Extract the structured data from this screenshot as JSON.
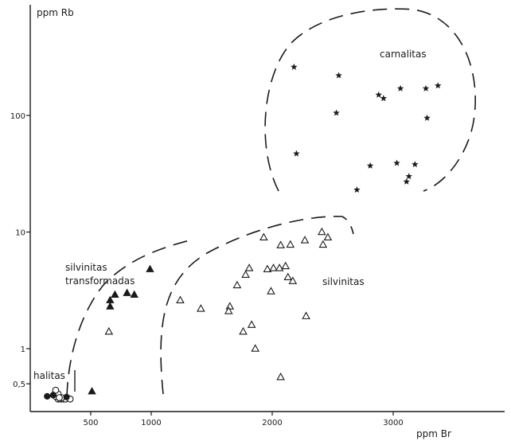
{
  "chart_data": {
    "type": "scatter",
    "title": "",
    "xlabel": "ppm Br",
    "ylabel": "ppm Rb",
    "x_scale": "linear",
    "y_scale": "log",
    "xlim": [
      0,
      3800
    ],
    "ylim": [
      0.35,
      1000
    ],
    "grid": false,
    "x_ticks": [
      {
        "value": 500,
        "label": "500"
      },
      {
        "value": 1000,
        "label": "1000"
      },
      {
        "value": 2000,
        "label": "2000"
      },
      {
        "value": 3000,
        "label": "3000"
      }
    ],
    "y_ticks": [
      {
        "value": 0.5,
        "label": "0,5"
      },
      {
        "value": 1,
        "label": "1"
      },
      {
        "value": 10,
        "label": "10"
      },
      {
        "value": 100,
        "label": "100"
      }
    ],
    "fields": [
      {
        "label": "carnalitas",
        "lines": [
          "carnalitas"
        ]
      },
      {
        "label": "silvinitas",
        "lines": [
          "silvinitas"
        ]
      },
      {
        "label": "silvinitas transformadas",
        "lines": [
          "silvinitas",
          "transformadas"
        ]
      },
      {
        "label": "halitas",
        "lines": [
          "halitas"
        ]
      }
    ],
    "series": [
      {
        "marker": "star",
        "points": [
          [
            2180,
            260
          ],
          [
            2550,
            220
          ],
          [
            2880,
            150
          ],
          [
            2920,
            140
          ],
          [
            3060,
            170
          ],
          [
            3270,
            170
          ],
          [
            3370,
            180
          ],
          [
            2530,
            105
          ],
          [
            3280,
            95
          ],
          [
            2200,
            47
          ],
          [
            2810,
            37
          ],
          [
            3030,
            39
          ],
          [
            3180,
            38
          ],
          [
            3130,
            30
          ],
          [
            3110,
            27
          ],
          [
            2700,
            23
          ]
        ]
      },
      {
        "marker": "triangle-open",
        "points": [
          [
            1930,
            9
          ],
          [
            2270,
            8.5
          ],
          [
            2410,
            10
          ],
          [
            2460,
            9
          ],
          [
            2070,
            7.7
          ],
          [
            2150,
            7.8
          ],
          [
            2420,
            7.8
          ],
          [
            1810,
            4.9
          ],
          [
            1780,
            4.3
          ],
          [
            1960,
            4.8
          ],
          [
            2010,
            4.9
          ],
          [
            2060,
            4.9
          ],
          [
            2110,
            5.1
          ],
          [
            2130,
            4.1
          ],
          [
            2170,
            3.8
          ],
          [
            1710,
            3.5
          ],
          [
            1990,
            3.1
          ],
          [
            1240,
            2.6
          ],
          [
            1410,
            2.2
          ],
          [
            1650,
            2.3
          ],
          [
            1640,
            2.1
          ],
          [
            1830,
            1.6
          ],
          [
            1760,
            1.4
          ],
          [
            2280,
            1.9
          ],
          [
            1860,
            1.0
          ],
          [
            650,
            1.4
          ],
          [
            2070,
            0.57
          ]
        ]
      },
      {
        "marker": "triangle-filled",
        "points": [
          [
            990,
            4.8
          ],
          [
            700,
            2.9
          ],
          [
            800,
            3.0
          ],
          [
            860,
            2.9
          ],
          [
            660,
            2.6
          ],
          [
            660,
            2.3
          ],
          [
            510,
            0.43
          ]
        ]
      },
      {
        "marker": "circle-open",
        "points": [
          [
            230,
            0.37
          ],
          [
            250,
            0.37
          ],
          [
            270,
            0.37
          ],
          [
            290,
            0.37
          ],
          [
            330,
            0.37
          ],
          [
            210,
            0.39
          ],
          [
            230,
            0.41
          ],
          [
            210,
            0.44
          ],
          [
            260,
            0.38
          ],
          [
            240,
            0.38
          ]
        ]
      },
      {
        "marker": "circle-filled",
        "points": [
          [
            140,
            0.39
          ],
          [
            190,
            0.4
          ],
          [
            300,
            0.385
          ]
        ]
      }
    ]
  }
}
